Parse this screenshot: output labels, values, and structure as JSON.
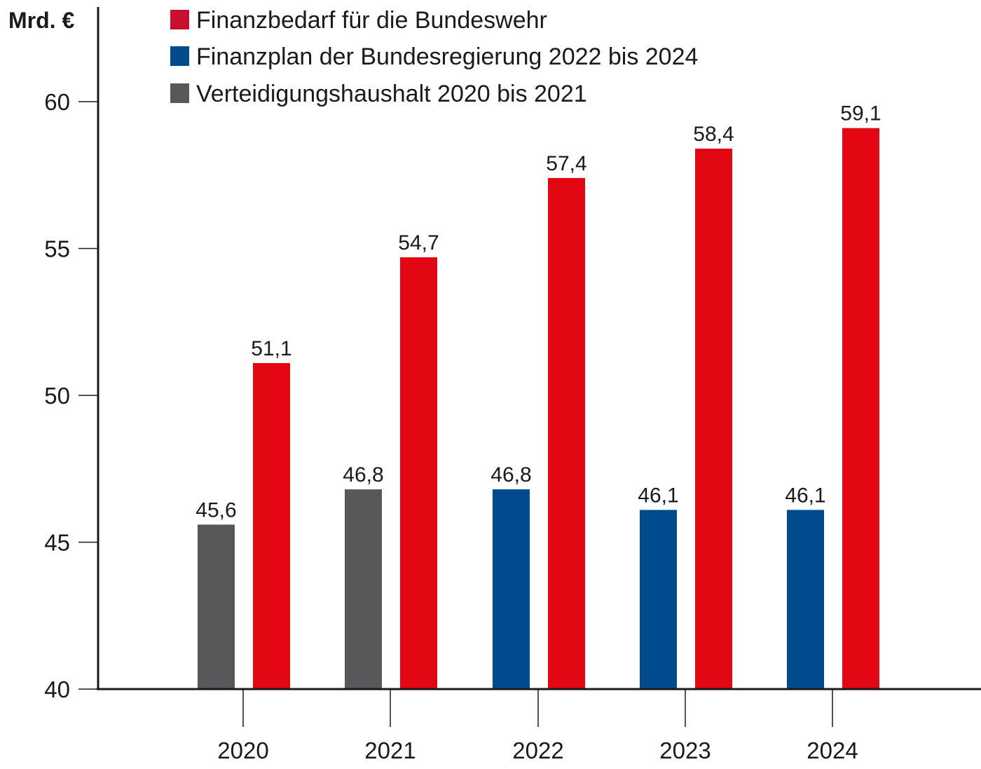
{
  "chart_data": {
    "type": "bar",
    "unit_label": "Mrd. €",
    "categories": [
      "2020",
      "2021",
      "2022",
      "2023",
      "2024"
    ],
    "ylim": [
      40,
      62
    ],
    "yticks": [
      40,
      45,
      50,
      55,
      60
    ],
    "grid": false,
    "legend_position": "top",
    "legend": [
      {
        "label": "Finanzbedarf für die Bundeswehr",
        "color": "#c8102e"
      },
      {
        "label": "Finanzplan der Bundesregierung 2022 bis 2024",
        "color": "#004b8d"
      },
      {
        "label": "Verteidigungshaushalt 2020 bis 2021",
        "color": "#58585a"
      }
    ],
    "series": [
      {
        "values": [
          45.6,
          46.8,
          46.8,
          46.1,
          46.1
        ],
        "labels": [
          "45,6",
          "46,8",
          "46,8",
          "46,1",
          "46,1"
        ],
        "colors": [
          "#58585a",
          "#58585a",
          "#004b8d",
          "#004b8d",
          "#004b8d"
        ]
      },
      {
        "values": [
          51.1,
          54.7,
          57.4,
          58.4,
          59.1
        ],
        "labels": [
          "51,1",
          "54,7",
          "57,4",
          "58,4",
          "59,1"
        ],
        "colors": [
          "#e30613",
          "#e30613",
          "#e30613",
          "#e30613",
          "#e30613"
        ]
      }
    ]
  }
}
